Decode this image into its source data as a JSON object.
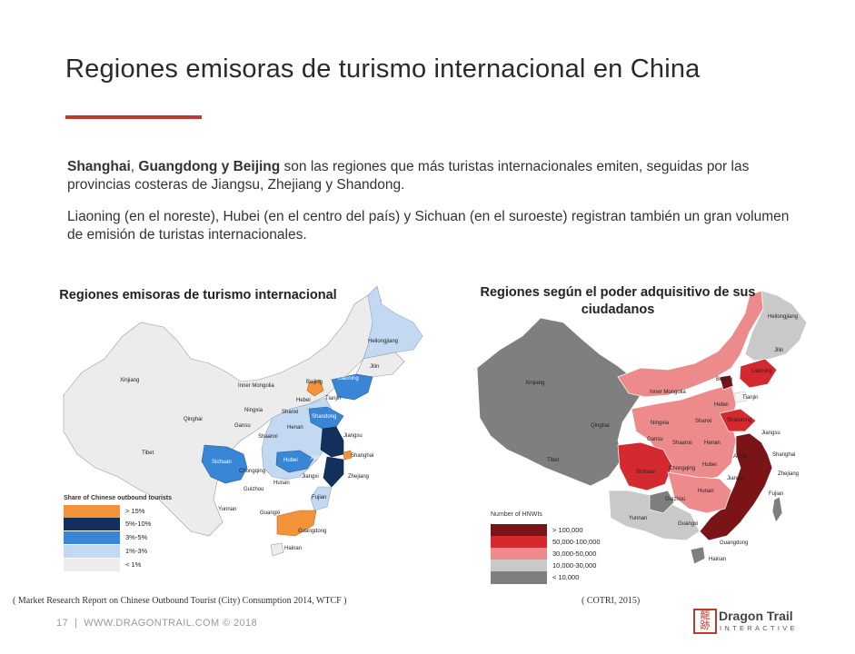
{
  "slide": {
    "title": "Regiones emisoras de turismo internacional en China",
    "para1_bold1": "Shanghai",
    "para1_sep": ", ",
    "para1_bold2": "Guangdong y Beijing",
    "para1_rest": " son las regiones que más turistas internacionales emiten, seguidas por las provincias costeras de Jiangsu, Zhejiang y Shandong.",
    "para2": "Liaoning (en el noreste), Hubei (en el centro del país) y  Sichuan (en el suroeste) registran también un gran volumen de emisión de turistas internacionales."
  },
  "map_left": {
    "title": "Regiones emisoras de turismo internacional",
    "legend_title": "Share of Chinese outbound tourists",
    "legend": [
      {
        "label": "> 15%",
        "color": "#f2933a"
      },
      {
        "label": "5%-10%",
        "color": "#13315c"
      },
      {
        "label": "3%-5%",
        "color": "#3a86d6"
      },
      {
        "label": "1%-3%",
        "color": "#c3d9f2"
      },
      {
        "label": "< 1%",
        "color": "#ececec"
      }
    ],
    "labels": {
      "xinjiang": "Xinjiang",
      "tibet": "Tibet",
      "qinghai": "Qinghai",
      "gansu": "Gansu",
      "inner_mongolia": "Inner Mongolia",
      "heilongjiang": "Heilongjiang",
      "jilin": "Jilin",
      "liaoning": "Liaoning",
      "beijing": "Beijing",
      "tianjin": "Tianjin",
      "hebei": "Hebei",
      "ningxia": "Ningxia",
      "shanxi": "Shanxi",
      "shandong": "Shandong",
      "shaanxi": "Shaanxi",
      "henan": "Henan",
      "jiangsu": "Jiangsu",
      "shanghai": "Shanghai",
      "anhui": "Anhui",
      "sichuan": "Sichuan",
      "hubei": "Hubei",
      "chongqing": "Chongqing",
      "zhejiang": "Zhejiang",
      "jiangxi": "Jiangxi",
      "hunan": "Hunan",
      "guizhou": "Guizhou",
      "fujian": "Fujian",
      "yunnan": "Yunnan",
      "guangxi": "Guangxi",
      "guangdong": "Guangdong",
      "hainan": "Hainan"
    }
  },
  "map_right": {
    "title": "Regiones según el poder adquisitivo de sus ciudadanos",
    "legend_title": "Number of HNWIs",
    "legend": [
      {
        "label": "> 100,000",
        "color": "#7a1416"
      },
      {
        "label": "50,000-100,000",
        "color": "#d42a2f"
      },
      {
        "label": "30,000-50,000",
        "color": "#ec8a8c"
      },
      {
        "label": "10,000-30,000",
        "color": "#c9c9c9"
      },
      {
        "label": "< 10,000",
        "color": "#7f7f7f"
      }
    ],
    "labels": {
      "xinjiang": "Xinjiang",
      "tibet": "Tibet",
      "qinghai": "Qinghai",
      "gansu": "Gansu",
      "inner_mongolia": "Inner Mongolia",
      "heilongjiang": "Heilongjiang",
      "jilin": "Jilin",
      "liaoning": "Liaoning",
      "beijing": "Beijing",
      "tianjin": "Tianjin",
      "hebei": "Hebei",
      "ningxia": "Ningxia",
      "shanxi": "Shanxi",
      "shandong": "Shandong",
      "shaanxi": "Shaanxi",
      "henan": "Henan",
      "jiangsu": "Jiangsu",
      "shanghai": "Shanghai",
      "anhui": "Anhui",
      "sichuan": "Sichuan",
      "hubei": "Hubei",
      "chongqing": "Chongqing",
      "zhejiang": "Zhejiang",
      "jiangxi": "Jiangxi",
      "hunan": "Hunan",
      "guizhou": "Guizhou",
      "fujian": "Fujian",
      "yunnan": "Yunnan",
      "guangxi": "Guangxi",
      "guangdong": "Guangdong",
      "hainan": "Hainan"
    }
  },
  "sources": {
    "left": "( Market Research Report on Chinese Outbound Tourist (City) Consumption 2014, WTCF )",
    "right": "( COTRI, 2015)"
  },
  "footer": {
    "page_number": "17",
    "separator": "|",
    "site": "WWW.DRAGONTRAIL.COM © 2018"
  },
  "logo": {
    "glyph": "龍\n跡",
    "name": "Dragon Trail",
    "sub": "INTERACTIVE"
  }
}
